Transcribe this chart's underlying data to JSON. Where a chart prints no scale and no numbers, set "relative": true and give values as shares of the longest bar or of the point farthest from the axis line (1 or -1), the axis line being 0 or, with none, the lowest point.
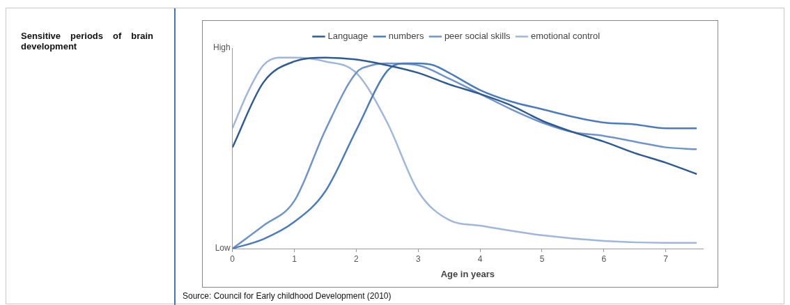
{
  "chart_data": {
    "type": "line",
    "title": "Sensitive periods of brain development",
    "xlabel": "Age in years",
    "relative": true,
    "legend": "top",
    "marker": "none",
    "line_style": "solid",
    "xlim": [
      0,
      7.6
    ],
    "xticks": [
      0,
      1,
      2,
      3,
      4,
      5,
      6,
      7
    ],
    "annotations": [
      "High",
      "Low",
      "Source: Council for Early childhood Development (2010)"
    ],
    "series": [
      {
        "name": "Language",
        "color": "#2e5b93",
        "x": [
          0,
          0.5,
          1,
          1.5,
          2,
          2.5,
          3,
          3.5,
          4,
          4.5,
          5,
          5.5,
          6,
          6.5,
          7,
          7.5
        ],
        "values": [
          0.53,
          0.87,
          0.98,
          1.0,
          0.99,
          0.96,
          0.92,
          0.86,
          0.81,
          0.75,
          0.67,
          0.61,
          0.56,
          0.5,
          0.45,
          0.39
        ]
      },
      {
        "name": "numbers",
        "color": "#4a7bbd",
        "x": [
          0,
          0.5,
          1,
          1.5,
          2,
          2.5,
          2.75,
          3,
          3.25,
          3.5,
          4,
          4.5,
          5,
          5.5,
          6,
          6.5,
          7,
          7.5
        ],
        "values": [
          0,
          0.05,
          0.14,
          0.3,
          0.62,
          0.93,
          0.97,
          0.97,
          0.96,
          0.92,
          0.83,
          0.77,
          0.73,
          0.69,
          0.66,
          0.65,
          0.63,
          0.63
        ]
      },
      {
        "name": "peer social skills",
        "color": "#6f94cc",
        "x": [
          0,
          0.5,
          1,
          1.5,
          2,
          2.25,
          2.5,
          3,
          3.5,
          4,
          4.5,
          5,
          5.5,
          6,
          6.5,
          7,
          7.5
        ],
        "values": [
          0,
          0.12,
          0.25,
          0.62,
          0.92,
          0.96,
          0.97,
          0.96,
          0.89,
          0.81,
          0.73,
          0.66,
          0.61,
          0.59,
          0.56,
          0.53,
          0.52
        ]
      },
      {
        "name": "emotional control",
        "color": "#9fb6dd",
        "x": [
          0,
          0.25,
          0.5,
          0.75,
          1,
          1.5,
          2,
          2.5,
          3,
          3.5,
          4,
          5,
          6,
          7,
          7.5
        ],
        "values": [
          0.63,
          0.82,
          0.96,
          1.0,
          1.0,
          0.98,
          0.92,
          0.66,
          0.3,
          0.15,
          0.12,
          0.07,
          0.04,
          0.03,
          0.03
        ]
      }
    ]
  }
}
